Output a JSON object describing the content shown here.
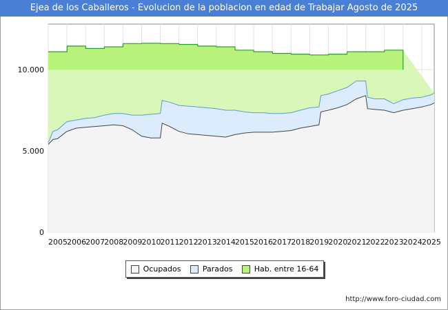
{
  "header": {
    "title": "Ejea de los Caballeros - Evolucion de la poblacion en edad de Trabajar Agosto de 2025"
  },
  "footer": {
    "source": "http://www.foro-ciudad.com"
  },
  "colors": {
    "title_bg": "#4a7fd6",
    "ocupados_fill": "#f4f4f4",
    "ocupados_line": "#444444",
    "parados_fill": "#dcecfc",
    "parados_line": "#5b9bd5",
    "hab_fill": "#d9f7b8",
    "hab_solid": "#b8f27a",
    "hab_line": "#2e9b2e"
  },
  "chart_data": {
    "type": "area",
    "title": "Ejea de los Caballeros - Evolucion de la poblacion en edad de Trabajar Agosto de 2025",
    "x_ticks": [
      "2005",
      "2006",
      "2007",
      "2008",
      "2009",
      "2010",
      "2011",
      "2012",
      "2013",
      "2014",
      "2015",
      "2016",
      "2017",
      "2018",
      "2019",
      "2020",
      "2021",
      "2022",
      "2023",
      "2024",
      "2025"
    ],
    "y_ticks": [
      "0",
      "5.000",
      "10.000"
    ],
    "y_tick_values": [
      0,
      5000,
      10000
    ],
    "ylim": [
      0,
      12800
    ],
    "xlim": [
      2005.0,
      2025.67
    ],
    "grid": true,
    "legend_position": "bottom",
    "series": [
      {
        "name": "Ocupados",
        "legend_label": "Ocupados",
        "x": [
          2005.0,
          2005.25,
          2005.5,
          2006.0,
          2006.5,
          2007.0,
          2007.5,
          2008.0,
          2008.5,
          2009.0,
          2009.5,
          2010.0,
          2010.5,
          2011.0,
          2011.1,
          2011.5,
          2012.0,
          2012.5,
          2013.0,
          2013.5,
          2014.0,
          2014.5,
          2015.0,
          2015.5,
          2016.0,
          2016.5,
          2017.0,
          2017.5,
          2018.0,
          2018.5,
          2019.0,
          2019.5,
          2019.6,
          2020.0,
          2020.5,
          2021.0,
          2021.5,
          2022.0,
          2022.1,
          2022.5,
          2023.0,
          2023.5,
          2024.0,
          2024.5,
          2025.0,
          2025.5,
          2025.67
        ],
        "values": [
          5400,
          5700,
          5750,
          6200,
          6400,
          6450,
          6500,
          6550,
          6600,
          6550,
          6300,
          5900,
          5800,
          5800,
          6700,
          6500,
          6200,
          6050,
          6000,
          5950,
          5900,
          5850,
          6000,
          6100,
          6150,
          6150,
          6150,
          6200,
          6250,
          6400,
          6500,
          6600,
          7400,
          7500,
          7650,
          7850,
          8200,
          8400,
          7600,
          7550,
          7500,
          7350,
          7500,
          7600,
          7700,
          7850,
          7950
        ]
      },
      {
        "name": "Parados",
        "legend_label": "Parados",
        "x": [
          2005.0,
          2005.25,
          2005.5,
          2006.0,
          2006.5,
          2007.0,
          2007.5,
          2008.0,
          2008.5,
          2009.0,
          2009.5,
          2010.0,
          2010.5,
          2011.0,
          2011.1,
          2011.5,
          2012.0,
          2012.5,
          2013.0,
          2013.5,
          2014.0,
          2014.5,
          2015.0,
          2015.5,
          2016.0,
          2016.5,
          2017.0,
          2017.5,
          2018.0,
          2018.5,
          2019.0,
          2019.5,
          2019.6,
          2020.0,
          2020.5,
          2021.0,
          2021.5,
          2022.0,
          2022.1,
          2022.5,
          2023.0,
          2023.5,
          2024.0,
          2024.5,
          2025.0,
          2025.5,
          2025.67
        ],
        "values": [
          5500,
          6200,
          6300,
          6800,
          6900,
          7000,
          7050,
          7200,
          7300,
          7300,
          7200,
          7200,
          7250,
          7300,
          8100,
          8000,
          7800,
          7750,
          7700,
          7650,
          7600,
          7500,
          7500,
          7400,
          7350,
          7350,
          7300,
          7300,
          7350,
          7500,
          7650,
          7700,
          8400,
          8500,
          8700,
          8900,
          9300,
          9300,
          8300,
          8200,
          8200,
          7900,
          8150,
          8250,
          8300,
          8450,
          8550
        ]
      },
      {
        "name": "Hab. entre 16-64",
        "legend_label": "Hab. entre 16-64",
        "x": [
          2005.0,
          2006.0,
          2006.01,
          2007.0,
          2007.01,
          2008.0,
          2008.01,
          2009.0,
          2009.01,
          2010.0,
          2010.01,
          2011.0,
          2011.01,
          2012.0,
          2012.01,
          2013.0,
          2013.01,
          2014.0,
          2014.01,
          2015.0,
          2015.01,
          2016.0,
          2016.01,
          2017.0,
          2017.01,
          2018.0,
          2018.01,
          2019.0,
          2019.01,
          2020.0,
          2020.01,
          2021.0,
          2021.01,
          2022.0,
          2022.01,
          2023.0,
          2023.01,
          2024.0
        ],
        "values": [
          11100,
          11100,
          11450,
          11450,
          11300,
          11300,
          11400,
          11400,
          11600,
          11600,
          11620,
          11620,
          11600,
          11600,
          11550,
          11550,
          11450,
          11450,
          11400,
          11400,
          11200,
          11200,
          11100,
          11100,
          11000,
          11000,
          10950,
          10950,
          10900,
          10900,
          10950,
          10950,
          11100,
          11100,
          11100,
          11100,
          11200,
          11200
        ]
      }
    ]
  }
}
